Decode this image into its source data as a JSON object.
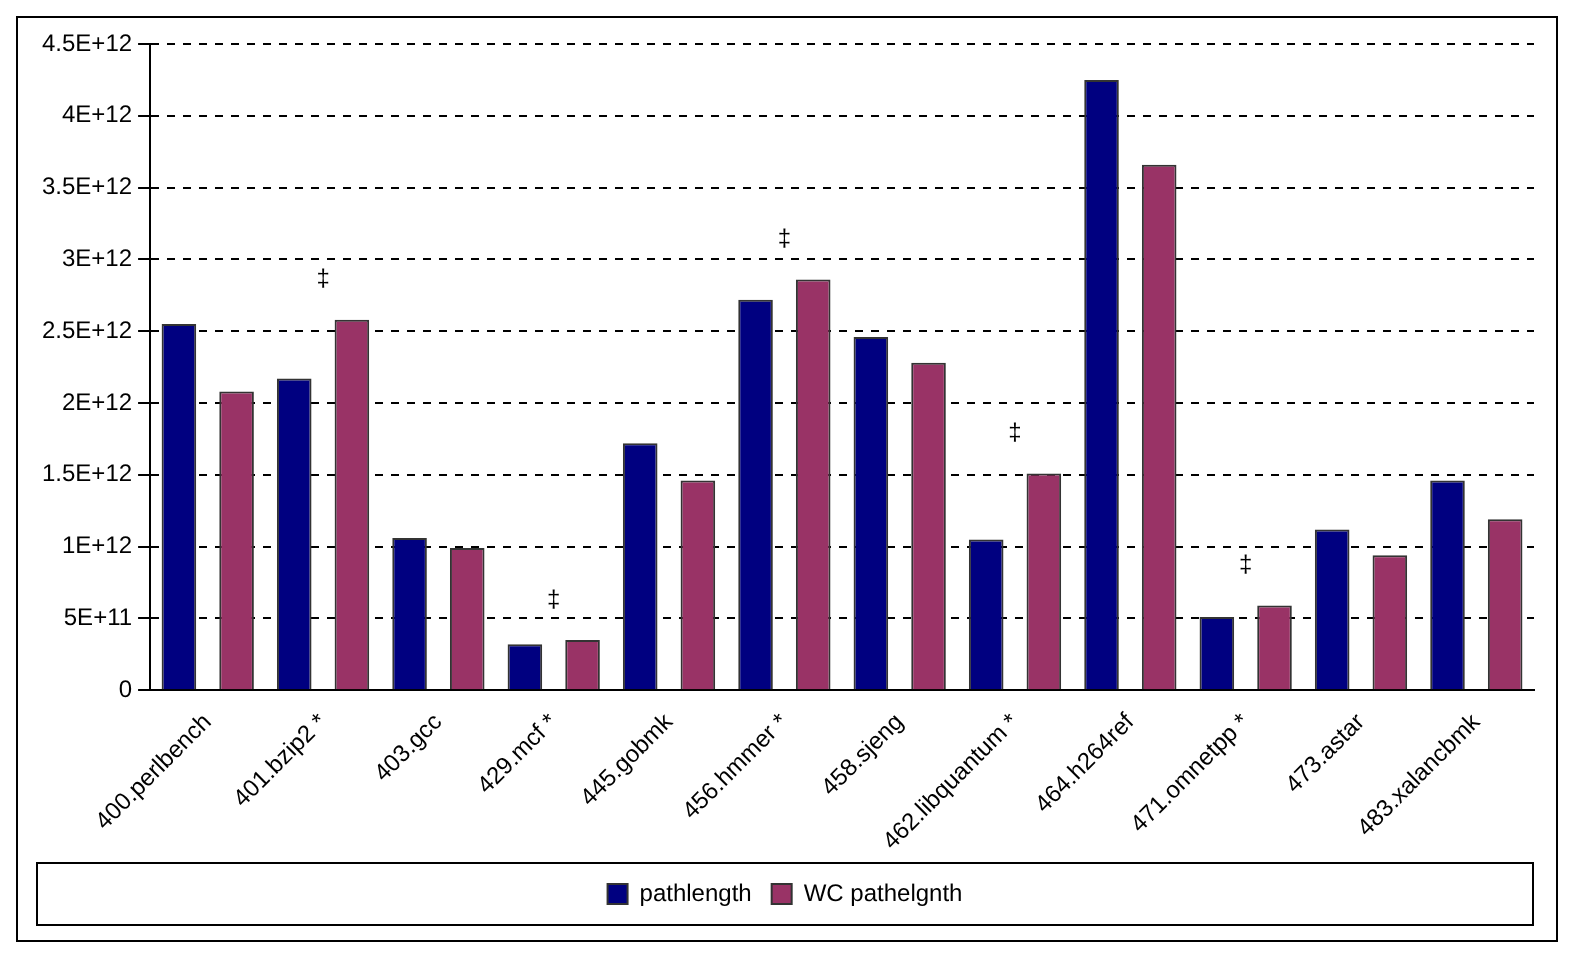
{
  "chart_data": {
    "type": "bar",
    "categories": [
      "400.perlbench",
      "401.bzip2 *",
      "403.gcc",
      "429.mcf *",
      "445.gobmk",
      "456.hmmer *",
      "458.sjeng",
      "462.libquantum *",
      "464.h264ref",
      "471.omnetpp *",
      "473.astar",
      "483.xalancbmk"
    ],
    "series": [
      {
        "name": "pathlength",
        "color": "#000080",
        "values": [
          2550000000000.0,
          2170000000000.0,
          1060000000000.0,
          320000000000.0,
          1720000000000.0,
          2720000000000.0,
          2460000000000.0,
          1050000000000.0,
          4250000000000.0,
          510000000000.0,
          1120000000000.0,
          1460000000000.0
        ]
      },
      {
        "name": "WC pathelgnth",
        "color": "#993366",
        "values": [
          2080000000000.0,
          2580000000000.0,
          990000000000.0,
          350000000000.0,
          1460000000000.0,
          2860000000000.0,
          2280000000000.0,
          1510000000000.0,
          3660000000000.0,
          590000000000.0,
          940000000000.0,
          1190000000000.0
        ],
        "value_labels": [
          null,
          "‡",
          null,
          "‡",
          null,
          "‡",
          null,
          "‡",
          null,
          "‡",
          null,
          null
        ]
      }
    ],
    "ylim": [
      0,
      4500000000000.0
    ],
    "yticks": [
      {
        "value": 0,
        "label": "0"
      },
      {
        "value": 500000000000.0,
        "label": "5E+11"
      },
      {
        "value": 1000000000000.0,
        "label": "1E+12"
      },
      {
        "value": 1500000000000.0,
        "label": "1.5E+12"
      },
      {
        "value": 2000000000000.0,
        "label": "2E+12"
      },
      {
        "value": 2500000000000.0,
        "label": "2.5E+12"
      },
      {
        "value": 3000000000000.0,
        "label": "3E+12"
      },
      {
        "value": 3500000000000.0,
        "label": "3.5E+12"
      },
      {
        "value": 4000000000000.0,
        "label": "4E+12"
      },
      {
        "value": 4500000000000.0,
        "label": "4.5E+12"
      }
    ],
    "grid": "y",
    "line_style": "dashed",
    "legend": "bottom"
  }
}
